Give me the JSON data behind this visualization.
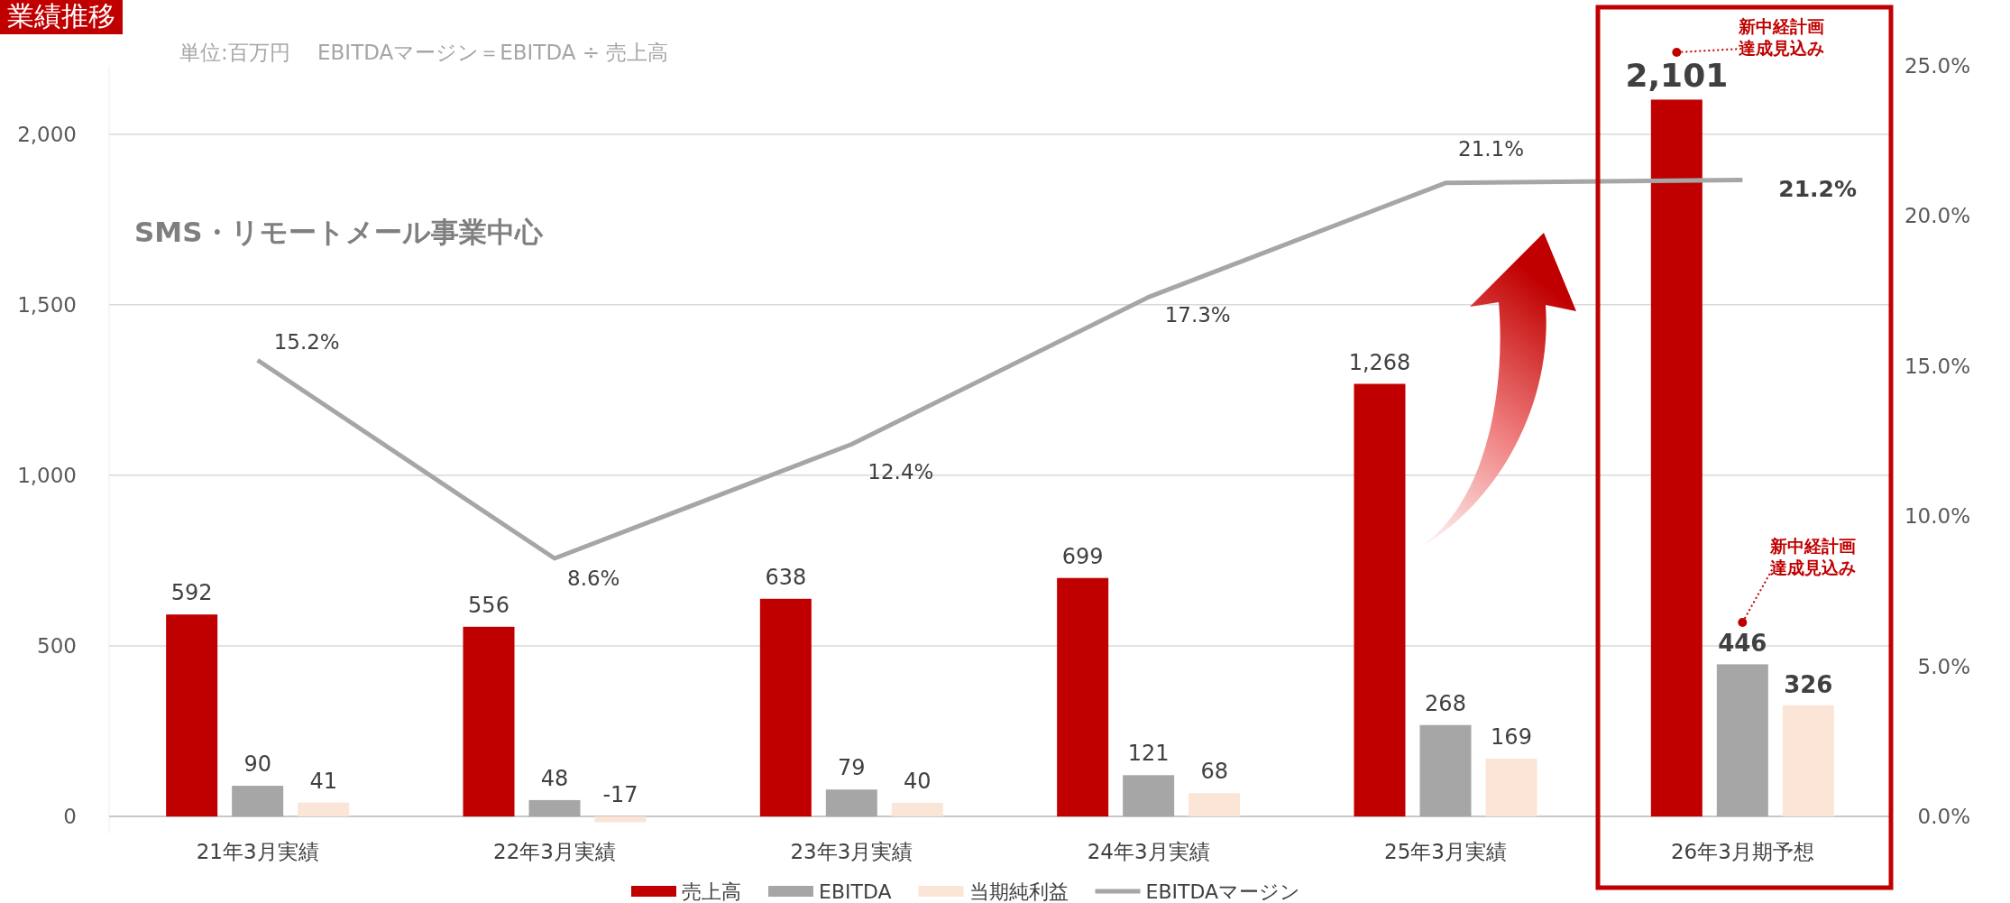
{
  "chart_data": {
    "type": "bar",
    "title": "業績推移",
    "subtitle": "単位:百万円　 EBITDAマージン＝EBITDA ÷ 売上高",
    "categories": [
      "21年3月実績",
      "22年3月実績",
      "23年3月実績",
      "24年3月実績",
      "25年3月実績",
      "26年3月期予想"
    ],
    "series": [
      {
        "name": "売上高",
        "color": "#c00000",
        "values": [
          592,
          556,
          638,
          699,
          1268,
          2101
        ],
        "value_labels": [
          "592",
          "556",
          "638",
          "699",
          "1,268",
          "2,101"
        ]
      },
      {
        "name": "EBITDA",
        "color": "#a6a6a6",
        "values": [
          90,
          48,
          79,
          121,
          268,
          446
        ],
        "value_labels": [
          "90",
          "48",
          "79",
          "121",
          "268",
          "446"
        ]
      },
      {
        "name": "当期純利益",
        "color": "#fbe5d6",
        "values": [
          41,
          -17,
          40,
          68,
          169,
          326
        ],
        "value_labels": [
          "41",
          "-17",
          "40",
          "68",
          "169",
          "326"
        ]
      },
      {
        "name": "EBITDAマージン",
        "type": "line",
        "axis": "y2",
        "color": "#a6a6a6",
        "values": [
          15.2,
          8.6,
          12.4,
          17.3,
          21.1,
          21.2
        ],
        "value_labels": [
          "15.2%",
          "8.6%",
          "12.4%",
          "17.3%",
          "21.1%",
          "21.2%"
        ]
      }
    ],
    "ylim": [
      -50,
      2200
    ],
    "yticks": [
      0,
      500,
      {
        "value": 1000,
        "label": "1,000"
      },
      {
        "value": 1500,
        "label": "1,500"
      },
      {
        "value": 2000,
        "label": "2,000"
      }
    ],
    "y2lim": [
      -0.56,
      25
    ],
    "y2ticks": [
      {
        "value": 0,
        "label": "0.0%"
      },
      {
        "value": 5,
        "label": "5.0%"
      },
      {
        "value": 10,
        "label": "10.0%"
      },
      {
        "value": 15,
        "label": "15.0%"
      },
      {
        "value": 20,
        "label": "20.0%"
      },
      {
        "value": 25,
        "label": "25.0%"
      }
    ],
    "grid": "y",
    "legend": "bottom",
    "marker": "none",
    "line_style": "solid",
    "annotations": [
      "SMS・リモートメール事業中心",
      "新中経計画達成見込み",
      "新中経計画達成見込み"
    ]
  }
}
